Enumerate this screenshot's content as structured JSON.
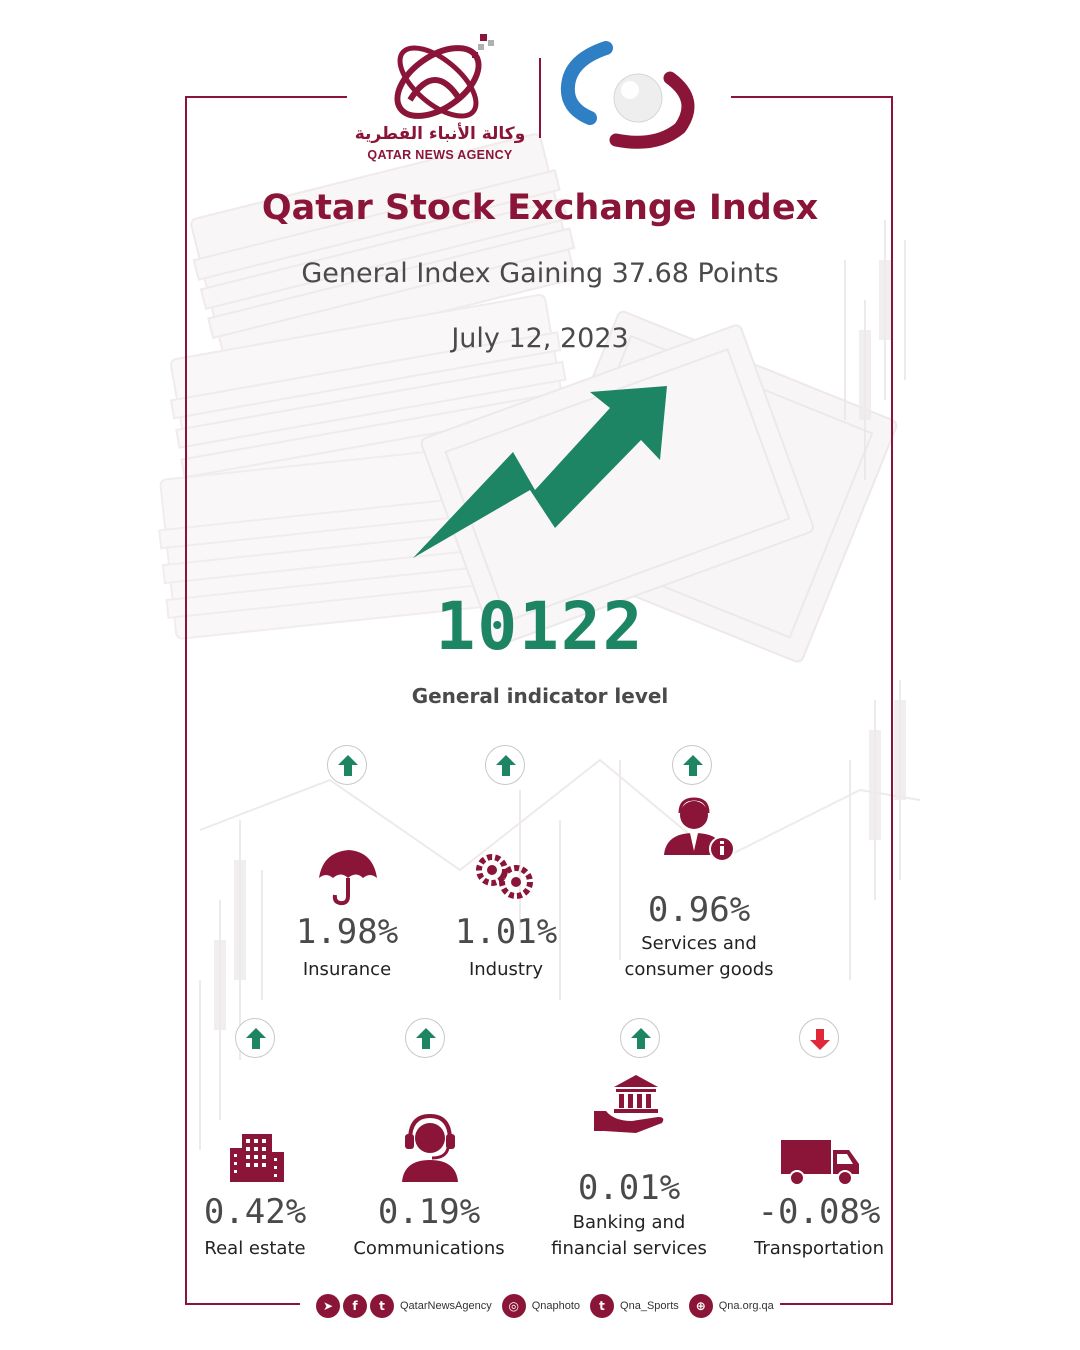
{
  "brand": {
    "logo_arabic": "وكالة الأنباء القطرية",
    "logo_english": "QATAR NEWS AGENCY"
  },
  "header": {
    "title": "Qatar Stock Exchange Index",
    "subtitle": "General Index Gaining 37.68 Points",
    "date": "July 12, 2023"
  },
  "main_indicator": {
    "value": "10122",
    "label": "General indicator level",
    "trend_color": "#1d8563"
  },
  "colors": {
    "brand": "#8a1538",
    "up": "#1d8563",
    "down": "#e0283a"
  },
  "sectors": [
    {
      "name": "Insurance",
      "name_line2": "",
      "change": "1.98%",
      "direction": "up",
      "icon": "umbrella-icon"
    },
    {
      "name": "Industry",
      "name_line2": "",
      "change": "1.01%",
      "direction": "up",
      "icon": "gears-icon"
    },
    {
      "name": "Services and",
      "name_line2": "consumer goods",
      "change": "0.96%",
      "direction": "up",
      "icon": "service-agent-icon"
    },
    {
      "name": "Real estate",
      "name_line2": "",
      "change": "0.42%",
      "direction": "up",
      "icon": "building-icon"
    },
    {
      "name": "Communications",
      "name_line2": "",
      "change": "0.19%",
      "direction": "up",
      "icon": "headset-icon"
    },
    {
      "name": "Banking and",
      "name_line2": "financial services",
      "change": "0.01%",
      "direction": "up",
      "icon": "bank-hand-icon"
    },
    {
      "name": "Transportation",
      "name_line2": "",
      "change": "-0.08%",
      "direction": "down",
      "icon": "truck-icon"
    }
  ],
  "footer": {
    "handle_main": "QatarNewsAgency",
    "handle_photo": "Qnaphoto",
    "handle_sports": "Qna_Sports",
    "website": "Qna.org.qa"
  }
}
